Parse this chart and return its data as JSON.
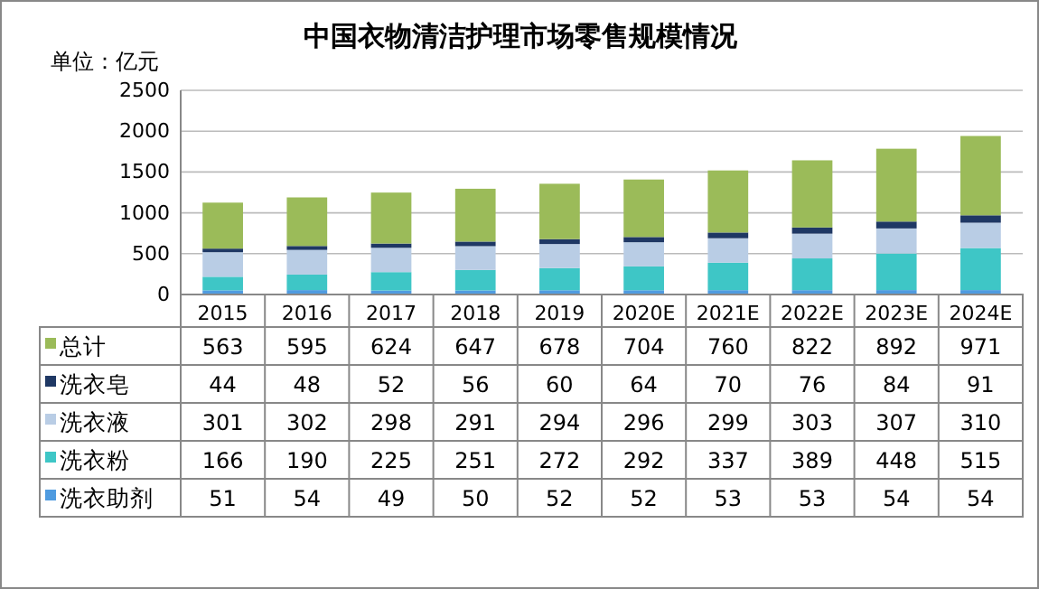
{
  "chart_data": {
    "type": "bar",
    "stacked": true,
    "title": "中国衣物清洁护理市场零售规模情况",
    "ylabel": "单位：亿元",
    "categories": [
      "2015",
      "2016",
      "2017",
      "2018",
      "2019",
      "2020E",
      "2021E",
      "2022E",
      "2023E",
      "2024E"
    ],
    "series": [
      {
        "name": "洗衣助剂",
        "color": "#4f9be0",
        "values": [
          51,
          54,
          49,
          50,
          52,
          52,
          53,
          53,
          54,
          54
        ]
      },
      {
        "name": "洗衣粉",
        "color": "#3ec6c6",
        "values": [
          166,
          190,
          225,
          251,
          272,
          292,
          337,
          389,
          448,
          515
        ]
      },
      {
        "name": "洗衣液",
        "color": "#b9cde5",
        "values": [
          301,
          302,
          298,
          291,
          294,
          296,
          299,
          303,
          307,
          310
        ]
      },
      {
        "name": "洗衣皂",
        "color": "#1f3864",
        "values": [
          44,
          48,
          52,
          56,
          60,
          64,
          70,
          76,
          84,
          91
        ]
      },
      {
        "name": "总计",
        "color": "#9bbb59",
        "values": [
          563,
          595,
          624,
          647,
          678,
          704,
          760,
          822,
          892,
          971
        ]
      }
    ],
    "ylim": [
      0,
      2500
    ],
    "yticks": [
      0,
      500,
      1000,
      1500,
      2000,
      2500
    ],
    "grid": "y",
    "data_labels": true,
    "legend": "bottom"
  }
}
